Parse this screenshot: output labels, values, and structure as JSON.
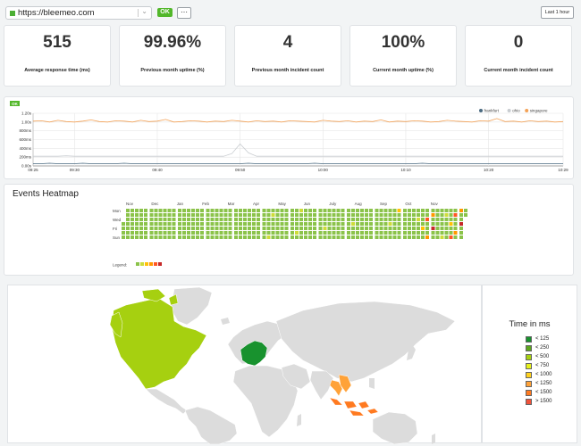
{
  "topbar": {
    "url": "https://bleemeo.com",
    "status": "OK",
    "more_label": "⋯",
    "range_label": "Last 1 hour"
  },
  "stats": [
    {
      "value": "515",
      "label": "Average response time (ms)"
    },
    {
      "value": "99.96%",
      "label": "Previous month uptime (%)"
    },
    {
      "value": "4",
      "label": "Previous month incident count"
    },
    {
      "value": "100%",
      "label": "Current month uptime (%)"
    },
    {
      "value": "0",
      "label": "Current month incident count"
    }
  ],
  "chart_data": {
    "type": "line",
    "badge": "OK",
    "y_ticks": [
      "0.00s",
      "200ms",
      "400ms",
      "600ms",
      "800ms",
      "1.00s",
      "1.20s"
    ],
    "ylim": [
      0,
      1.2
    ],
    "x_ticks": [
      "09:25",
      "09:30",
      "09:40",
      "09:50",
      "10:00",
      "10:10",
      "10:20",
      "10:29"
    ],
    "x_tick_minutes": [
      0,
      5,
      15,
      25,
      35,
      45,
      55,
      64
    ],
    "series": [
      {
        "name": "frankfurt",
        "color": "#4a6a80",
        "values": [
          0.05,
          0.05,
          0.06,
          0.05,
          0.05,
          0.05,
          0.06,
          0.05,
          0.05,
          0.05,
          0.05,
          0.06,
          0.05,
          0.05,
          0.05,
          0.05,
          0.05,
          0.05,
          0.05,
          0.05,
          0.05,
          0.05,
          0.05,
          0.05,
          0.05,
          0.05,
          0.06,
          0.05,
          0.05,
          0.05,
          0.05,
          0.05,
          0.05,
          0.05,
          0.06,
          0.05,
          0.05,
          0.05,
          0.05,
          0.05,
          0.05,
          0.05,
          0.05,
          0.05,
          0.05,
          0.05,
          0.05,
          0.06,
          0.05,
          0.05,
          0.05,
          0.05,
          0.05,
          0.05,
          0.05,
          0.05,
          0.05,
          0.05,
          0.05,
          0.05,
          0.05,
          0.05,
          0.05,
          0.05,
          0.05
        ]
      },
      {
        "name": "ohio",
        "color": "#c8ccd0",
        "values": [
          0.22,
          0.22,
          0.22,
          0.22,
          0.23,
          0.22,
          0.22,
          0.22,
          0.22,
          0.22,
          0.22,
          0.22,
          0.22,
          0.22,
          0.22,
          0.22,
          0.22,
          0.22,
          0.22,
          0.22,
          0.22,
          0.22,
          0.22,
          0.22,
          0.28,
          0.5,
          0.3,
          0.22,
          0.22,
          0.22,
          0.22,
          0.22,
          0.22,
          0.22,
          0.22,
          0.22,
          0.22,
          0.22,
          0.22,
          0.22,
          0.22,
          0.22,
          0.22,
          0.22,
          0.22,
          0.22,
          0.22,
          0.22,
          0.22,
          0.22,
          0.22,
          0.22,
          0.22,
          0.22,
          0.22,
          0.22,
          0.22,
          0.22,
          0.22,
          0.22,
          0.22,
          0.22,
          0.22,
          0.22,
          0.22
        ]
      },
      {
        "name": "singapore",
        "color": "#f3a257",
        "values": [
          1.02,
          1.03,
          1.0,
          1.04,
          1.01,
          1.0,
          1.02,
          1.05,
          1.01,
          1.0,
          1.03,
          1.02,
          1.0,
          1.04,
          1.01,
          1.02,
          1.06,
          1.0,
          1.01,
          1.03,
          1.02,
          1.0,
          1.02,
          1.01,
          1.04,
          1.02,
          1.0,
          1.03,
          1.01,
          1.02,
          1.0,
          1.03,
          1.02,
          1.01,
          1.0,
          1.04,
          1.02,
          1.01,
          1.03,
          1.0,
          1.02,
          1.01,
          1.05,
          1.0,
          1.02,
          1.01,
          1.03,
          1.02,
          1.0,
          1.01,
          1.04,
          1.02,
          1.01,
          1.0,
          1.03,
          1.02,
          1.08,
          1.01,
          1.02,
          1.0,
          1.03,
          1.01,
          1.02,
          1.0,
          1.01
        ]
      }
    ]
  },
  "heatmap": {
    "title": "Events Heatmap",
    "months": [
      "Nov",
      "Dec",
      "Jan",
      "Feb",
      "Mar",
      "Apr",
      "May",
      "Jun",
      "July",
      "Aug",
      "Sep",
      "Oct",
      "Nov"
    ],
    "days": [
      "Mon",
      "Wed",
      "Fri",
      "Sun"
    ],
    "legend_label": "Legend:",
    "colors": [
      "#8bc34a",
      "#cddc39",
      "#ffc107",
      "#ff9800",
      "#ff5722",
      "#c62828"
    ]
  },
  "map_legend": {
    "title": "Time in ms",
    "items": [
      {
        "label": "< 125",
        "color": "#18922e"
      },
      {
        "label": "< 250",
        "color": "#5ea61f"
      },
      {
        "label": "< 500",
        "color": "#a6d010"
      },
      {
        "label": "< 750",
        "color": "#e6f11d"
      },
      {
        "label": "< 1000",
        "color": "#ffd21f"
      },
      {
        "label": "< 1250",
        "color": "#ffa238"
      },
      {
        "label": "< 1500",
        "color": "#ff7a20"
      },
      {
        "label": "> 1500",
        "color": "#f0523a"
      }
    ]
  }
}
